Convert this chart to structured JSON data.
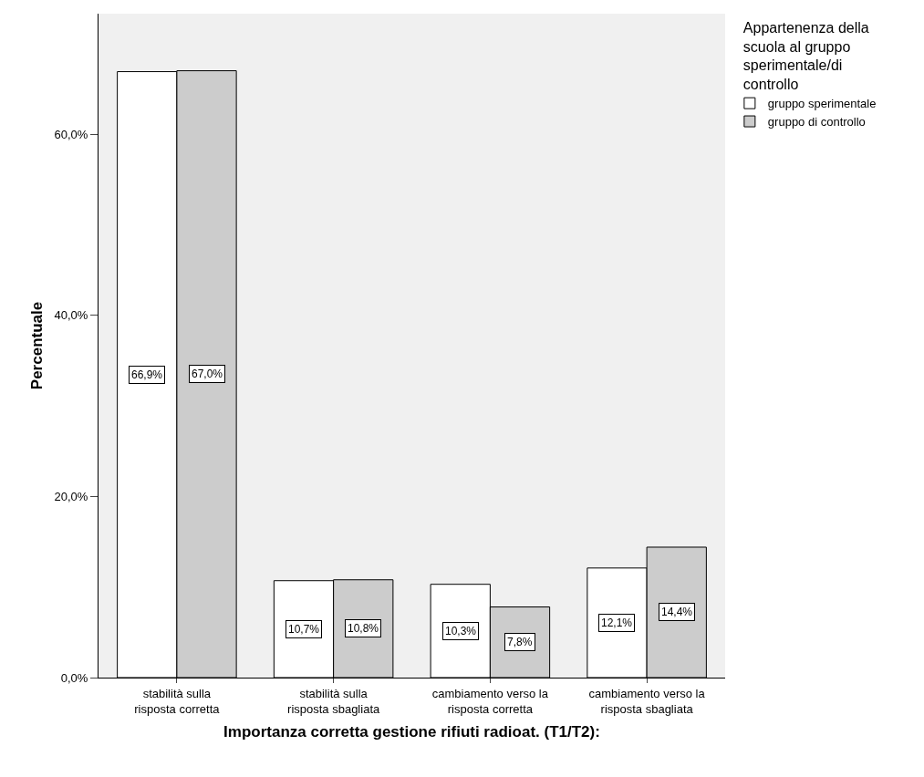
{
  "chart_data": {
    "type": "bar",
    "xlabel": "Importanza corretta gestione rifiuti radioat. (T1/T2):",
    "ylabel": "Percentuale",
    "legend_title": "Appartenenza della scuola al gruppo sperimentale/di controllo",
    "categories": [
      "stabilità sulla risposta corretta",
      "stabilità sulla risposta sbagliata",
      "cambiamento verso la risposta corretta",
      "cambiamento verso la risposta sbagliata"
    ],
    "series": [
      {
        "name": "gruppo sperimentale",
        "color": "#ffffff",
        "values": [
          66.9,
          10.7,
          10.3,
          12.1
        ],
        "value_labels": [
          "66,9%",
          "10,7%",
          "10,3%",
          "12,1%"
        ]
      },
      {
        "name": "gruppo di controllo",
        "color": "#cccccc",
        "values": [
          67.0,
          10.8,
          7.8,
          14.4
        ],
        "value_labels": [
          "67,0%",
          "10,8%",
          "7,8%",
          "14,4%"
        ]
      }
    ],
    "ylim": [
      0,
      73.3
    ],
    "yticks": [
      {
        "value": 0,
        "label": "0,0%"
      },
      {
        "value": 20,
        "label": "20,0%"
      },
      {
        "value": 40,
        "label": "40,0%"
      },
      {
        "value": 60,
        "label": "60,0%"
      }
    ],
    "grid": false,
    "legend": "top right"
  }
}
